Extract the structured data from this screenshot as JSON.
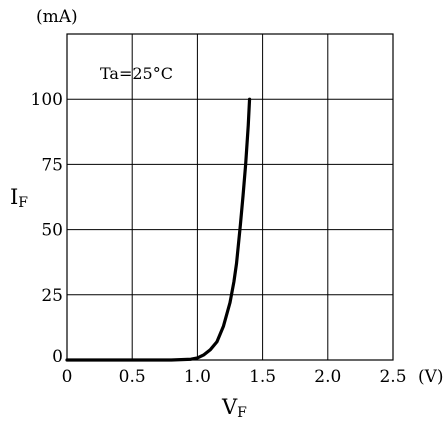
{
  "chart_data": {
    "type": "line",
    "y_unit": "(mA)",
    "x_unit": "(V)",
    "annotation": "Ta=25°C",
    "xlabel": {
      "main": "V",
      "sub": "F"
    },
    "ylabel": {
      "main": "I",
      "sub": "F"
    },
    "xlim": [
      0,
      2.5
    ],
    "ylim": [
      0,
      125
    ],
    "x_ticks": [
      {
        "value": 0,
        "label": "0"
      },
      {
        "value": 0.5,
        "label": "0.5"
      },
      {
        "value": 1.0,
        "label": "1.0"
      },
      {
        "value": 1.5,
        "label": "1.5"
      },
      {
        "value": 2.0,
        "label": "2.0"
      },
      {
        "value": 2.5,
        "label": "2.5"
      }
    ],
    "y_ticks": [
      {
        "value": 0,
        "label": "0"
      },
      {
        "value": 25,
        "label": "25"
      },
      {
        "value": 50,
        "label": "50"
      },
      {
        "value": 75,
        "label": "75"
      },
      {
        "value": 100,
        "label": "100"
      }
    ],
    "grid": true,
    "series": [
      {
        "x": [
          0,
          0.5,
          0.8,
          0.95,
          1.0,
          1.05,
          1.1,
          1.15,
          1.2,
          1.25,
          1.28,
          1.3,
          1.33,
          1.35,
          1.37,
          1.39,
          1.4
        ],
        "y": [
          0,
          0,
          0,
          0.3,
          0.8,
          2,
          4,
          7,
          13,
          22,
          30,
          37,
          52,
          63,
          75,
          90,
          100
        ]
      }
    ]
  }
}
